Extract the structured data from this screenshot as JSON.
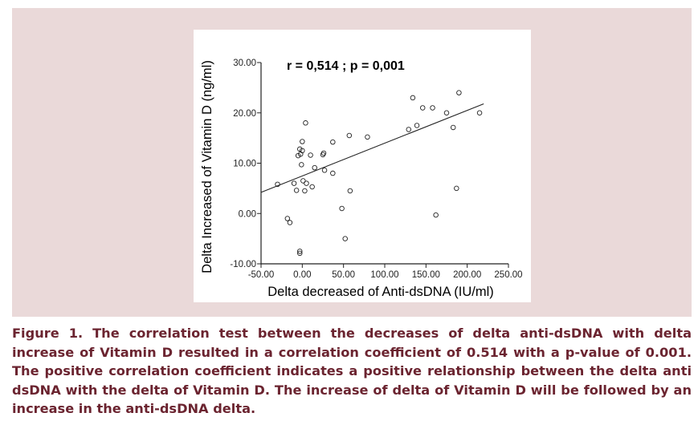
{
  "chart_data": {
    "type": "scatter",
    "xlabel": "Delta decreased of Anti-dsDNA (IU/ml)",
    "ylabel": "Delta Increased of Vitamin D (ng/ml)",
    "xlim": [
      -50,
      250
    ],
    "ylim": [
      -10,
      30
    ],
    "x_ticks": [
      "-50.00",
      "0.00",
      "50.00",
      "100.00",
      "150.00",
      "200.00",
      "250.00"
    ],
    "y_ticks": [
      "-10.00",
      "0.00",
      "10.00",
      "20.00",
      "30.00"
    ],
    "annotation": "r = 0,514 ; p = 0,001",
    "grid": false,
    "regression_line": {
      "x": [
        -50,
        220
      ],
      "y": [
        4.2,
        21.8
      ]
    },
    "points": [
      {
        "x": -30,
        "y": 5.8
      },
      {
        "x": -18,
        "y": -1
      },
      {
        "x": -15,
        "y": -1.8
      },
      {
        "x": -10,
        "y": 6
      },
      {
        "x": -7,
        "y": 4.6
      },
      {
        "x": -5,
        "y": 11.5
      },
      {
        "x": -3,
        "y": 12.8
      },
      {
        "x": -2,
        "y": 11.8
      },
      {
        "x": -3,
        "y": -7.5
      },
      {
        "x": -3,
        "y": -7.9
      },
      {
        "x": -1,
        "y": 9.7
      },
      {
        "x": 0,
        "y": 14.3
      },
      {
        "x": 0,
        "y": 12.5
      },
      {
        "x": 1,
        "y": 6.5
      },
      {
        "x": 3,
        "y": 4.5
      },
      {
        "x": 4,
        "y": 18
      },
      {
        "x": 5,
        "y": 6
      },
      {
        "x": 10,
        "y": 11.6
      },
      {
        "x": 12,
        "y": 5.3
      },
      {
        "x": 15,
        "y": 9.1
      },
      {
        "x": 25,
        "y": 11.7
      },
      {
        "x": 26,
        "y": 12
      },
      {
        "x": 27,
        "y": 8.6
      },
      {
        "x": 37,
        "y": 14.2
      },
      {
        "x": 37,
        "y": 8
      },
      {
        "x": 48,
        "y": 1
      },
      {
        "x": 52,
        "y": -5
      },
      {
        "x": 57,
        "y": 15.5
      },
      {
        "x": 58,
        "y": 4.5
      },
      {
        "x": 79,
        "y": 15.2
      },
      {
        "x": 129,
        "y": 16.7
      },
      {
        "x": 134,
        "y": 23
      },
      {
        "x": 139,
        "y": 17.5
      },
      {
        "x": 146,
        "y": 21
      },
      {
        "x": 158,
        "y": 21
      },
      {
        "x": 162,
        "y": -0.3
      },
      {
        "x": 175,
        "y": 20
      },
      {
        "x": 183,
        "y": 17.1
      },
      {
        "x": 187,
        "y": 5
      },
      {
        "x": 190,
        "y": 24
      },
      {
        "x": 215,
        "y": 20
      }
    ]
  },
  "caption": "Figure 1. The correlation test between the decreases of delta anti-dsDNA with delta increase of Vitamin D resulted in a correlation coefficient of 0.514 with a p-value of 0.001. The positive correlation coefficient indicates a positive relationship between the delta anti dsDNA with the delta of Vitamin D. The increase of delta of Vitamin D will be followed by an increase in the anti-dsDNA delta.",
  "colors": {
    "panel_background": "#ead9d9",
    "caption_text": "#6b2430",
    "marker_stroke": "#222222",
    "line": "#222222"
  }
}
